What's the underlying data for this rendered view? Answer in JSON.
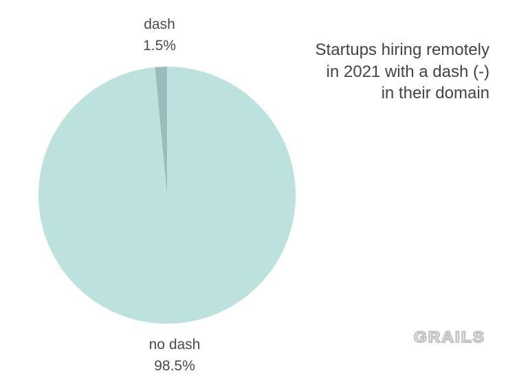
{
  "chart_data": {
    "type": "pie",
    "title": "Startups hiring remotely in 2021 with a dash (-) in their domain",
    "slices": [
      {
        "label": "no dash",
        "value": 98.5,
        "value_label": "98.5%",
        "color": "#bde2dd"
      },
      {
        "label": "dash",
        "value": 1.5,
        "value_label": "1.5%",
        "color": "#9abcbd"
      }
    ]
  },
  "logo": {
    "text": "GRAILS",
    "color": "#c2c2c2"
  }
}
